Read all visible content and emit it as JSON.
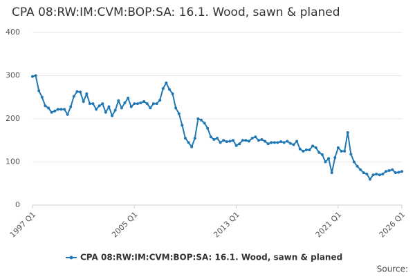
{
  "chart_data": {
    "type": "line",
    "title": "CPA 08:RW:IM:CVM:BOP:SA: 16.1. Wood, sawn & planed",
    "source": "Source:",
    "categories": [
      "1997 Q1",
      null,
      null,
      null,
      null,
      null,
      null,
      null,
      null,
      null,
      null,
      null,
      null,
      null,
      null,
      null,
      null,
      null,
      null,
      null,
      null,
      null,
      null,
      null,
      null,
      null,
      null,
      null,
      null,
      null,
      null,
      null,
      "2005 Q1",
      null,
      null,
      null,
      null,
      null,
      null,
      null,
      null,
      null,
      null,
      null,
      null,
      null,
      null,
      null,
      null,
      null,
      null,
      null,
      null,
      null,
      null,
      null,
      null,
      null,
      null,
      null,
      null,
      null,
      null,
      null,
      "2013 Q1",
      null,
      null,
      null,
      null,
      null,
      null,
      null,
      null,
      null,
      null,
      null,
      null,
      null,
      null,
      null,
      null,
      null,
      null,
      null,
      null,
      null,
      null,
      null,
      null,
      null,
      null,
      null,
      null,
      null,
      null,
      null,
      "2021 Q1",
      null,
      null,
      null,
      null,
      null,
      null,
      null,
      null,
      null,
      null,
      null,
      null,
      null,
      null,
      null,
      null,
      null,
      null,
      null,
      "2026 Q1"
    ],
    "series": [
      {
        "name": "CPA 08:RW:IM:CVM:BOP:SA: 16.1. Wood, sawn & planed",
        "color": "#1f77b4",
        "values": [
          298,
          300,
          265,
          250,
          230,
          225,
          215,
          218,
          222,
          222,
          222,
          210,
          228,
          252,
          263,
          262,
          240,
          258,
          235,
          235,
          222,
          230,
          235,
          215,
          228,
          207,
          220,
          242,
          225,
          237,
          248,
          228,
          235,
          235,
          237,
          240,
          235,
          225,
          235,
          235,
          243,
          270,
          283,
          268,
          258,
          225,
          212,
          185,
          155,
          145,
          135,
          155,
          200,
          197,
          190,
          178,
          158,
          152,
          155,
          145,
          150,
          147,
          148,
          150,
          138,
          142,
          150,
          150,
          148,
          155,
          158,
          150,
          152,
          148,
          142,
          145,
          145,
          145,
          147,
          145,
          148,
          143,
          140,
          148,
          130,
          125,
          128,
          128,
          137,
          133,
          122,
          117,
          100,
          108,
          75,
          110,
          133,
          125,
          125,
          168,
          118,
          100,
          90,
          82,
          75,
          72,
          60,
          70,
          72,
          70,
          72,
          78,
          80,
          82,
          75,
          76,
          78
        ]
      }
    ],
    "ylim": [
      0,
      400
    ],
    "yticks": [
      0,
      100,
      200,
      300,
      400
    ],
    "grid": true,
    "legend": "bottom"
  }
}
